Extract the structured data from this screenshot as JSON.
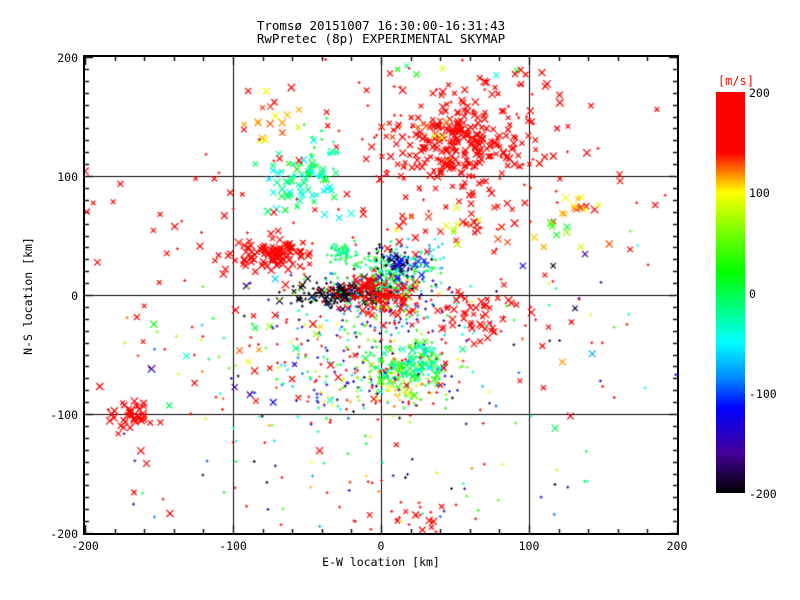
{
  "chart_data": {
    "type": "scatter",
    "title_line1": "Tromsø 20151007 16:30:00-16:31:43",
    "title_line2": "RwPretec (8p) EXPERIMENTAL SKYMAP",
    "xlabel": "E-W location [km]",
    "ylabel": "N-S location [km]",
    "xlim": [
      -200,
      200
    ],
    "ylim": [
      -200,
      200
    ],
    "xticks": [
      -200,
      -100,
      0,
      100,
      200
    ],
    "yticks": [
      -200,
      -100,
      0,
      100,
      200
    ],
    "x_minor_step": 20,
    "y_minor_step": 10,
    "grid": true,
    "grid_x_values": [
      -100,
      0,
      100
    ],
    "grid_y_values": [
      -100,
      0,
      100
    ],
    "colorbar": {
      "label": "[m/s]",
      "label_color": "#ff0000",
      "min": -200,
      "max": 200,
      "ticks": [
        200,
        100,
        0,
        -100,
        -200
      ],
      "stops": [
        [
          200,
          "#ff0000"
        ],
        [
          140,
          "#ff0000"
        ],
        [
          100,
          "#ffff00"
        ],
        [
          55,
          "#66ff00"
        ],
        [
          20,
          "#00ff00"
        ],
        [
          -15,
          "#00ff80"
        ],
        [
          -50,
          "#00ffff"
        ],
        [
          -85,
          "#0088ff"
        ],
        [
          -115,
          "#0000ff"
        ],
        [
          -160,
          "#440099"
        ],
        [
          -200,
          "#000000"
        ]
      ]
    },
    "representation": "gaussian-clusters",
    "clusters": [
      {
        "name": "ne-red-core",
        "cx": 58,
        "cy": 128,
        "sx": 20,
        "sy": 21,
        "n": 230,
        "marker": "x",
        "v": [
          168,
          200
        ]
      },
      {
        "name": "ne-red-halo",
        "cx": 52,
        "cy": 122,
        "sx": 44,
        "sy": 38,
        "n": 90,
        "marker": "mix",
        "v": [
          160,
          200
        ]
      },
      {
        "name": "ne-orange-fringe",
        "cx": 32,
        "cy": 132,
        "sx": 15,
        "sy": 22,
        "n": 20,
        "marker": "x",
        "v": [
          85,
          160
        ]
      },
      {
        "name": "top-green-cyan",
        "cx": 55,
        "cy": 188,
        "sx": 35,
        "sy": 5,
        "n": 5,
        "marker": "x",
        "v": [
          -60,
          40
        ]
      },
      {
        "name": "nw-cyan-cluster",
        "cx": -52,
        "cy": 96,
        "sx": 13,
        "sy": 15,
        "n": 70,
        "marker": "x",
        "v": [
          -60,
          20
        ]
      },
      {
        "name": "nw-cyan-tail",
        "cx": -40,
        "cy": 122,
        "sx": 10,
        "sy": 12,
        "n": 18,
        "marker": "dot",
        "v": [
          -50,
          30
        ]
      },
      {
        "name": "n-orange-cluster",
        "cx": -70,
        "cy": 146,
        "sx": 12,
        "sy": 10,
        "n": 16,
        "marker": "x",
        "v": [
          85,
          135
        ]
      },
      {
        "name": "w-red-streak",
        "cx": -74,
        "cy": 34,
        "sx": 13,
        "sy": 6,
        "n": 110,
        "marker": "x",
        "v": [
          172,
          200
        ]
      },
      {
        "name": "w-teal-blob",
        "cx": -26,
        "cy": 36,
        "sx": 5,
        "sy": 4,
        "n": 60,
        "marker": "dot",
        "v": [
          -35,
          10
        ]
      },
      {
        "name": "center-black-west",
        "cx": -27,
        "cy": 1,
        "sx": 16,
        "sy": 5,
        "n": 140,
        "marker": "mix",
        "v": [
          -200,
          -192
        ]
      },
      {
        "name": "center-red-blob",
        "cx": -1,
        "cy": 2,
        "sx": 11,
        "sy": 7,
        "n": 160,
        "marker": "mix",
        "v": [
          170,
          200
        ]
      },
      {
        "name": "center-green-north",
        "cx": 7,
        "cy": 20,
        "sx": 13,
        "sy": 9,
        "n": 170,
        "marker": "dot",
        "v": [
          -45,
          40
        ]
      },
      {
        "name": "center-navy",
        "cx": 15,
        "cy": 25,
        "sx": 7,
        "sy": 6,
        "n": 45,
        "marker": "mix",
        "v": [
          -150,
          -95
        ]
      },
      {
        "name": "center-black-north",
        "cx": 8,
        "cy": 28,
        "sx": 10,
        "sy": 7,
        "n": 35,
        "marker": "dot",
        "v": [
          -200,
          -190
        ]
      },
      {
        "name": "center-wide-mixed",
        "cx": 2,
        "cy": -16,
        "sx": 34,
        "sy": 20,
        "n": 260,
        "marker": "dot",
        "v": [
          -200,
          200
        ]
      },
      {
        "name": "center-cyan-ne",
        "cx": 30,
        "cy": 33,
        "sx": 8,
        "sy": 6,
        "n": 25,
        "marker": "dot",
        "v": [
          -80,
          -20
        ]
      },
      {
        "name": "mid-ne-warm",
        "cx": 57,
        "cy": 55,
        "sx": 16,
        "sy": 11,
        "n": 25,
        "marker": "x",
        "v": [
          60,
          200
        ]
      },
      {
        "name": "s-green-blob",
        "cx": 22,
        "cy": -60,
        "sx": 13,
        "sy": 9,
        "n": 150,
        "marker": "mix",
        "v": [
          -55,
          55
        ]
      },
      {
        "name": "s-yellow",
        "cx": 12,
        "cy": -80,
        "sx": 11,
        "sy": 7,
        "n": 55,
        "marker": "dot",
        "v": [
          55,
          115
        ]
      },
      {
        "name": "s-band-mixed",
        "cx": -12,
        "cy": -73,
        "sx": 42,
        "sy": 16,
        "n": 160,
        "marker": "dot",
        "v": [
          -200,
          200
        ]
      },
      {
        "name": "se-red",
        "cx": 64,
        "cy": -18,
        "sx": 10,
        "sy": 11,
        "n": 40,
        "marker": "x",
        "v": [
          172,
          200
        ]
      },
      {
        "name": "e-sparse-mixed",
        "cx": 135,
        "cy": -25,
        "sx": 35,
        "sy": 45,
        "n": 35,
        "marker": "mix",
        "v": [
          -200,
          200
        ]
      },
      {
        "name": "e-yellow-orange",
        "cx": 133,
        "cy": 75,
        "sx": 9,
        "sy": 6,
        "n": 14,
        "marker": "x",
        "v": [
          85,
          150
        ]
      },
      {
        "name": "e-green-few",
        "cx": 120,
        "cy": 50,
        "sx": 8,
        "sy": 6,
        "n": 6,
        "marker": "x",
        "v": [
          0,
          80
        ]
      },
      {
        "name": "w-red-cluster",
        "cx": -168,
        "cy": -100,
        "sx": 8,
        "sy": 7,
        "n": 40,
        "marker": "x",
        "v": [
          178,
          200
        ]
      },
      {
        "name": "w-sparse-mixed",
        "cx": -105,
        "cy": -45,
        "sx": 42,
        "sy": 32,
        "n": 70,
        "marker": "mix",
        "v": [
          -200,
          200
        ]
      },
      {
        "name": "bottom-sparse",
        "cx": -5,
        "cy": -150,
        "sx": 85,
        "sy": 28,
        "n": 80,
        "marker": "dot",
        "v": [
          -200,
          200
        ]
      },
      {
        "name": "bottom-red-dots",
        "cx": 25,
        "cy": -188,
        "sx": 18,
        "sy": 6,
        "n": 25,
        "marker": "mix",
        "v": [
          170,
          200
        ]
      },
      {
        "name": "red-wide-x",
        "cx": -15,
        "cy": 40,
        "sx": 110,
        "sy": 95,
        "n": 130,
        "marker": "x",
        "v": [
          174,
          200
        ]
      },
      {
        "name": "red-wide-dots",
        "cx": 0,
        "cy": 10,
        "sx": 110,
        "sy": 100,
        "n": 90,
        "marker": "dot",
        "v": [
          174,
          200
        ]
      }
    ]
  },
  "colors": {
    "background": "#ffffff",
    "axis": "#000000",
    "text": "#000000"
  }
}
